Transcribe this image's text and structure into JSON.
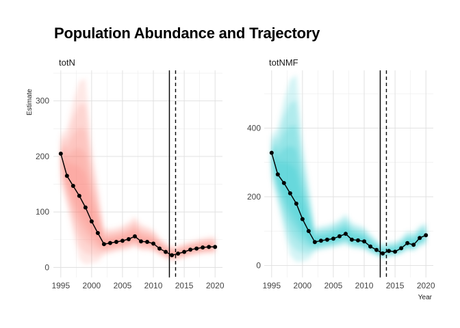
{
  "title": "Population Abundance and Trajectory",
  "colors": {
    "totN": "#f8766d",
    "totNMF": "#00bfc4",
    "line": "#000000",
    "grid": "#dedede"
  },
  "chart_data": [
    {
      "type": "line",
      "panel": "totN",
      "title": "totN",
      "xlabel": "",
      "ylabel": "Estimate",
      "xlim": [
        1993.8,
        2021.2
      ],
      "ylim": [
        -18,
        355
      ],
      "xticks": [
        1995,
        2000,
        2005,
        2010,
        2015,
        2020
      ],
      "yticks": [
        0,
        100,
        200,
        300
      ],
      "vlines": [
        {
          "x": 2012.6,
          "style": "solid"
        },
        {
          "x": 2013.6,
          "style": "dashed"
        }
      ],
      "x": [
        1995,
        1996,
        1997,
        1998,
        1999,
        2000,
        2001,
        2002,
        2003,
        2004,
        2005,
        2006,
        2007,
        2008,
        2009,
        2010,
        2011,
        2012,
        2013,
        2014,
        2015,
        2016,
        2017,
        2018,
        2019,
        2020
      ],
      "y": [
        205,
        165,
        147,
        129,
        108,
        83,
        62,
        42,
        44,
        46,
        48,
        51,
        56,
        47,
        46,
        43,
        34,
        28,
        22,
        25,
        28,
        32,
        34,
        36,
        37,
        37
      ],
      "lower": [
        150,
        110,
        60,
        15,
        5,
        8,
        10,
        22,
        25,
        28,
        30,
        32,
        36,
        30,
        30,
        28,
        22,
        16,
        12,
        14,
        17,
        20,
        22,
        24,
        25,
        25
      ],
      "upper": [
        240,
        250,
        300,
        335,
        340,
        220,
        150,
        72,
        70,
        72,
        76,
        82,
        92,
        78,
        74,
        68,
        55,
        45,
        38,
        40,
        44,
        47,
        50,
        53,
        55,
        56
      ]
    },
    {
      "type": "line",
      "panel": "totNMF",
      "title": "totNMF",
      "xlabel": "Year",
      "ylabel": "",
      "xlim": [
        1993.8,
        2021.2
      ],
      "ylim": [
        -35,
        568
      ],
      "xticks": [
        1995,
        2000,
        2005,
        2010,
        2015,
        2020
      ],
      "yticks": [
        0,
        200,
        400
      ],
      "vlines": [
        {
          "x": 2012.6,
          "style": "solid"
        },
        {
          "x": 2013.6,
          "style": "dashed"
        }
      ],
      "x": [
        1995,
        1996,
        1997,
        1998,
        1999,
        2000,
        2001,
        2002,
        2003,
        2004,
        2005,
        2006,
        2007,
        2008,
        2009,
        2010,
        2011,
        2012,
        2013,
        2014,
        2015,
        2016,
        2017,
        2018,
        2019,
        2020
      ],
      "y": [
        328,
        265,
        240,
        210,
        180,
        135,
        100,
        68,
        72,
        75,
        78,
        85,
        92,
        75,
        73,
        70,
        55,
        45,
        35,
        42,
        40,
        50,
        65,
        60,
        80,
        88
      ],
      "lower": [
        250,
        180,
        100,
        30,
        10,
        12,
        18,
        40,
        45,
        48,
        52,
        55,
        60,
        50,
        48,
        45,
        35,
        28,
        20,
        26,
        28,
        34,
        44,
        42,
        55,
        60
      ],
      "upper": [
        380,
        400,
        480,
        540,
        555,
        360,
        240,
        110,
        115,
        118,
        125,
        135,
        150,
        125,
        118,
        112,
        92,
        75,
        60,
        68,
        70,
        80,
        100,
        96,
        115,
        125
      ]
    }
  ]
}
